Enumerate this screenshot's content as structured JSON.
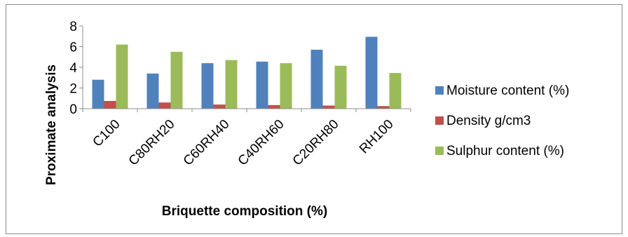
{
  "chart_data": {
    "type": "bar",
    "categories": [
      "C100",
      "C80RH20",
      "C60RH40",
      "C40RH60",
      "C20RH80",
      "RH100"
    ],
    "series": [
      {
        "name": "Moisture content (%)",
        "color": "#4f81bd",
        "values": [
          2.8,
          3.4,
          4.4,
          4.55,
          5.7,
          6.95
        ]
      },
      {
        "name": "Density g/cm3",
        "color": "#c0504d",
        "values": [
          0.75,
          0.6,
          0.4,
          0.35,
          0.3,
          0.25
        ]
      },
      {
        "name": "Sulphur content (%)",
        "color": "#9bbb59",
        "values": [
          6.2,
          5.5,
          4.7,
          4.4,
          4.15,
          3.45
        ]
      }
    ],
    "xlabel": "Briquette composition (%)",
    "ylabel": "Proximate analysis",
    "ylim": [
      0,
      8
    ],
    "yticks": [
      0,
      2,
      4,
      6,
      8
    ],
    "grid": false,
    "legend_position": "right"
  }
}
